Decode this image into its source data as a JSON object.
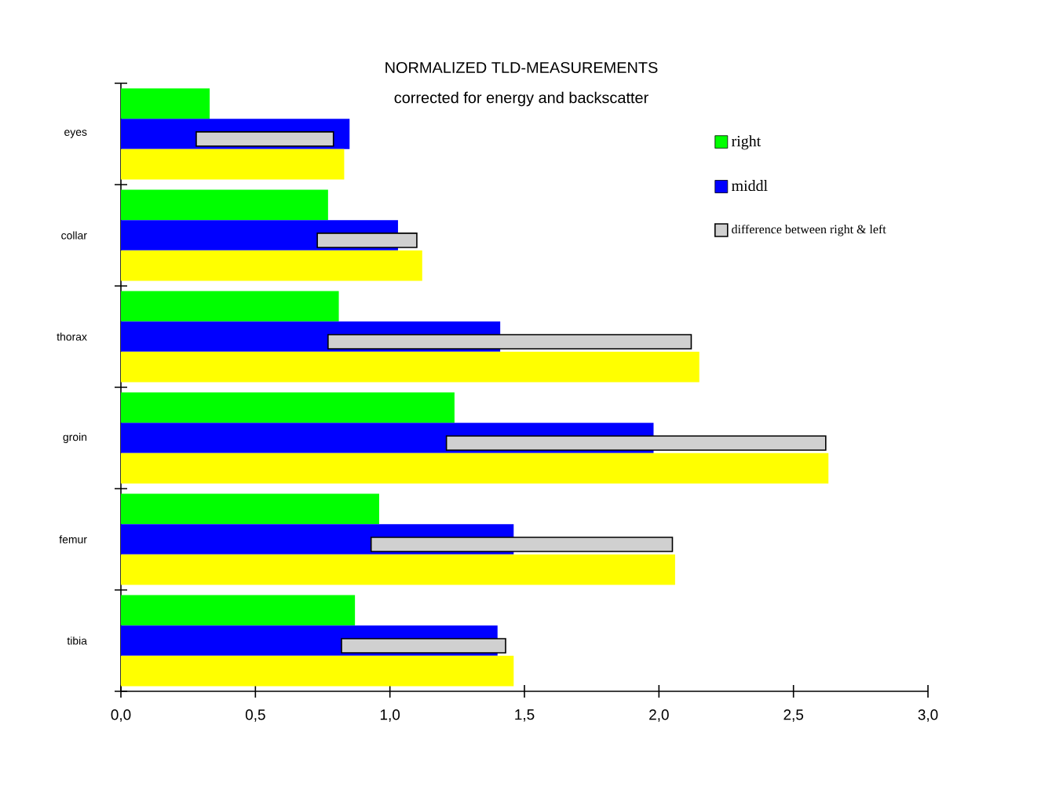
{
  "chart_data": {
    "type": "bar",
    "orientation": "horizontal",
    "title": "NORMALIZED TLD-MEASUREMENTS",
    "subtitle": "corrected for energy and backscatter",
    "categories": [
      "eyes",
      "collar",
      "thorax",
      "groin",
      "femur",
      "tibia"
    ],
    "series": [
      {
        "name": "right",
        "color": "#00ff00",
        "values": [
          0.33,
          0.77,
          0.81,
          1.24,
          0.96,
          0.87
        ]
      },
      {
        "name": "middl",
        "color": "#0000ff",
        "values": [
          0.85,
          1.03,
          1.41,
          1.98,
          1.46,
          1.4
        ]
      },
      {
        "color": "#ffff00",
        "values": [
          0.83,
          1.12,
          2.15,
          2.63,
          2.06,
          1.46
        ]
      },
      {
        "name": "difference between right & left",
        "color": "#d0d0d0",
        "base": [
          0.28,
          0.73,
          0.77,
          1.21,
          0.93,
          0.82
        ],
        "values": [
          0.51,
          0.37,
          1.35,
          1.41,
          1.12,
          0.61
        ]
      }
    ],
    "xlim": [
      0,
      3
    ],
    "xticks": [
      {
        "value": 0,
        "label": "0,0"
      },
      {
        "value": 0.5,
        "label": "0,5"
      },
      {
        "value": 1,
        "label": "1,0"
      },
      {
        "value": 1.5,
        "label": "1,5"
      },
      {
        "value": 2,
        "label": "2,0"
      },
      {
        "value": 2.5,
        "label": "2,5"
      },
      {
        "value": 3,
        "label": "3,0"
      }
    ],
    "legend": "top right"
  }
}
